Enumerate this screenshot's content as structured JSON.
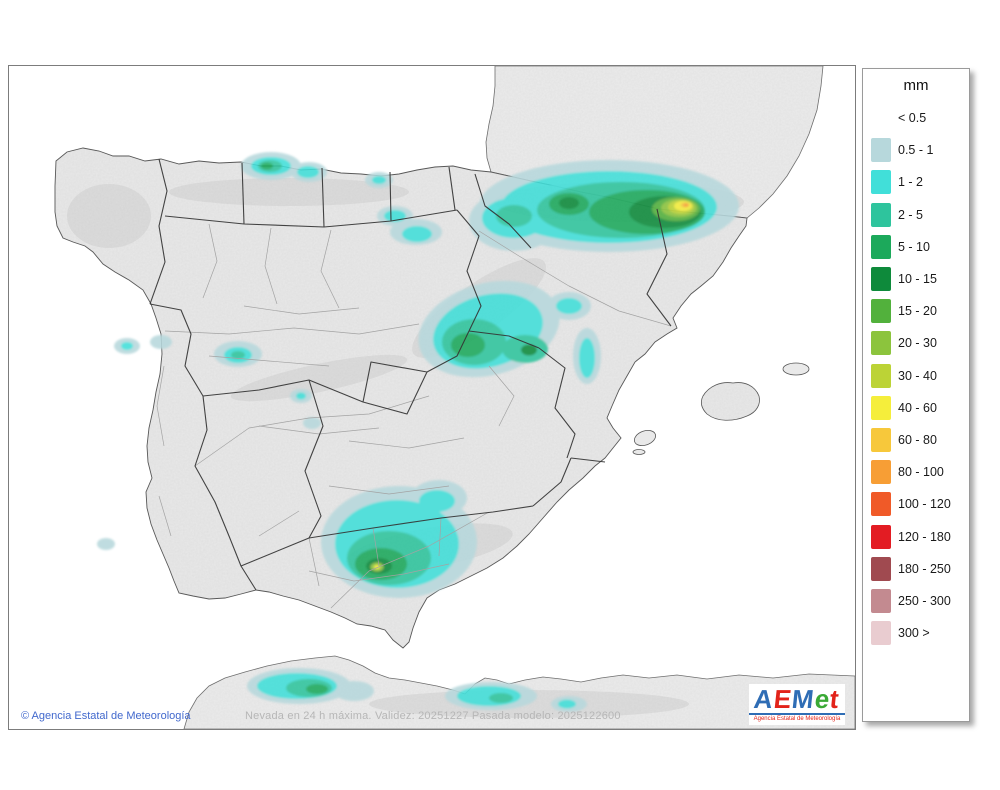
{
  "legend": {
    "title": "mm",
    "entries": [
      {
        "label": "< 0.5",
        "color": null
      },
      {
        "label": "0.5 - 1",
        "color": "#b7d8dc"
      },
      {
        "label": "1 - 2",
        "color": "#41dfd9"
      },
      {
        "label": "2 - 5",
        "color": "#2ec49d"
      },
      {
        "label": "5 - 10",
        "color": "#1ca95b"
      },
      {
        "label": "10 - 15",
        "color": "#0e8a3b"
      },
      {
        "label": "15 - 20",
        "color": "#52b13c"
      },
      {
        "label": "20 - 30",
        "color": "#8cc43d"
      },
      {
        "label": "30 - 40",
        "color": "#bcd336"
      },
      {
        "label": "40 - 60",
        "color": "#f5ee3b"
      },
      {
        "label": "60 - 80",
        "color": "#f7c83b"
      },
      {
        "label": "80 - 100",
        "color": "#f79e35"
      },
      {
        "label": "100 - 120",
        "color": "#f05a28"
      },
      {
        "label": "120 - 180",
        "color": "#e31c23"
      },
      {
        "label": "180 - 250",
        "color": "#a04a50"
      },
      {
        "label": "250 - 300",
        "color": "#c38a90"
      },
      {
        "label": "300 >",
        "color": "#e9ccd0"
      }
    ]
  },
  "map": {
    "copyright": "© Agencia Estatal de Meteorología",
    "caption": "Nevada en 24 h máxima. Validez: 20251227 Pasada modelo: 2025122600"
  },
  "logo": {
    "letters": [
      {
        "char": "A",
        "color": "#2f6db5"
      },
      {
        "char": "E",
        "color": "#e2231a"
      },
      {
        "char": "M",
        "color": "#2f6db5"
      },
      {
        "char": "e",
        "color": "#3aa935"
      },
      {
        "char": "t",
        "color": "#e2231a"
      }
    ],
    "subtitle": "Agencia Estatal de Meteorología"
  }
}
